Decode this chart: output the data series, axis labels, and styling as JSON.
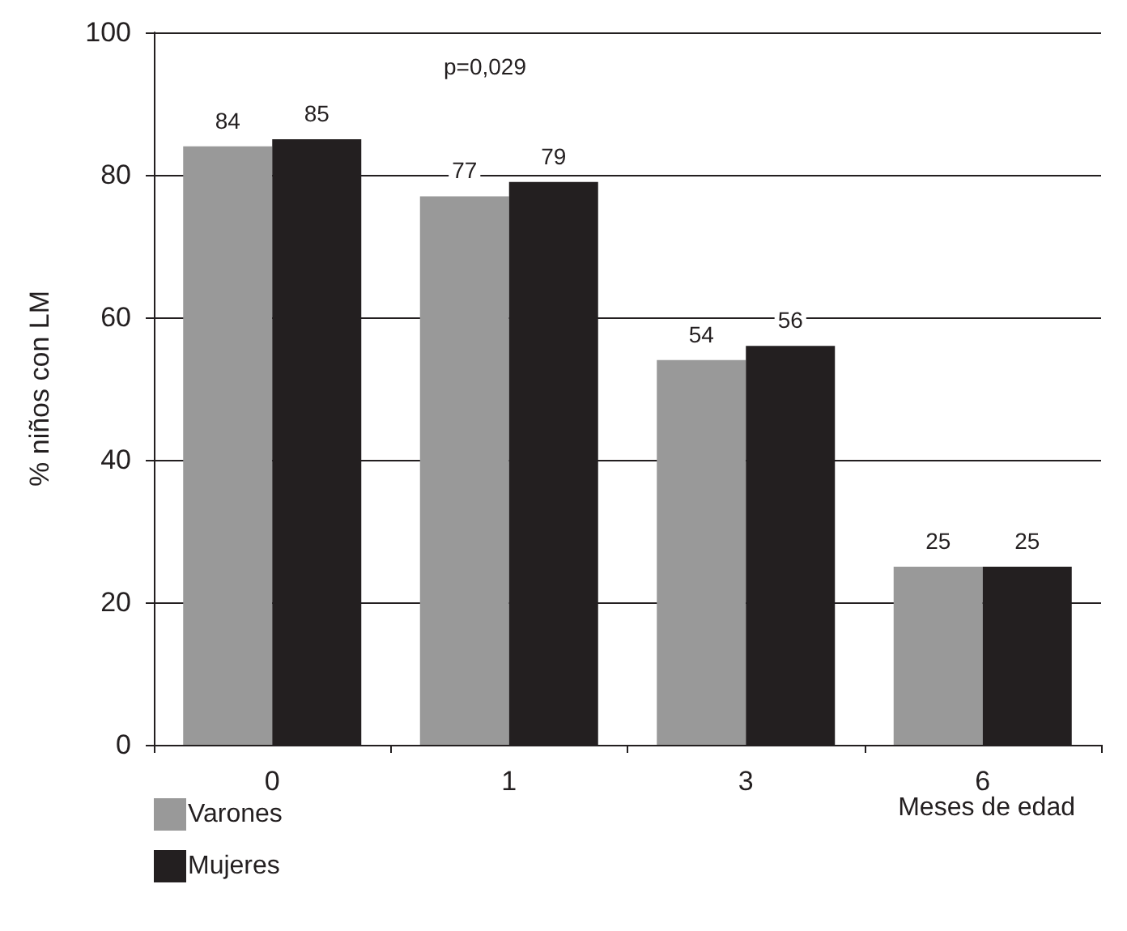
{
  "chart_data": {
    "type": "bar",
    "xlabel": "Meses de edad",
    "ylabel": "% niños con LM",
    "annotations": [
      "p=0,029"
    ],
    "categories": [
      "0",
      "1",
      "3",
      "6"
    ],
    "series": [
      {
        "name": "Varones",
        "color": "#999999",
        "values": [
          84,
          77,
          54,
          25
        ]
      },
      {
        "name": "Mujeres",
        "color": "#231f20",
        "values": [
          85,
          79,
          56,
          25
        ]
      }
    ],
    "ylim": [
      0,
      100
    ],
    "yticks": [
      0,
      20,
      40,
      60,
      80,
      100
    ],
    "grid": "y",
    "legend": "bottom left",
    "data_labels": true
  }
}
